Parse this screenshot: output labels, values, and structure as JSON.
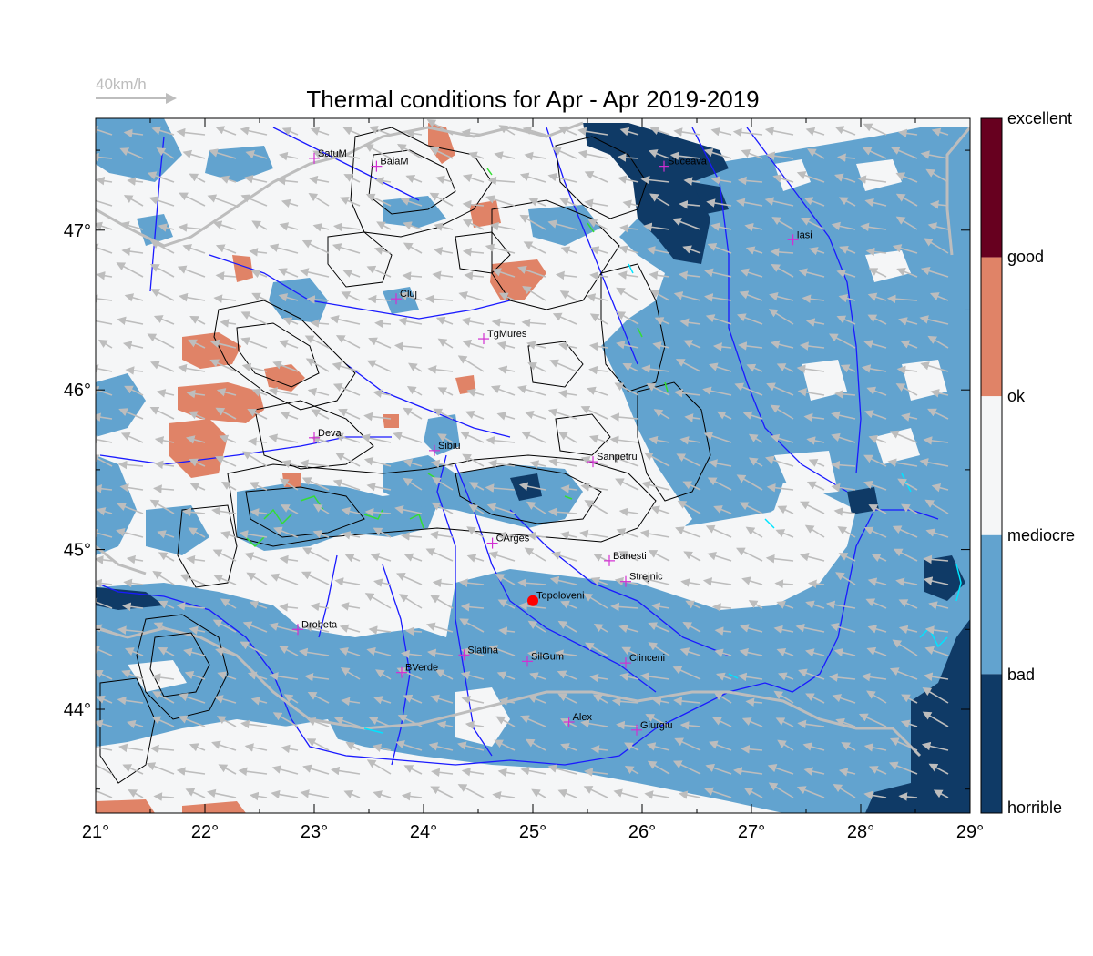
{
  "title": "Thermal conditions for Apr - Apr  2019-2019",
  "wind_scale": {
    "label": "40km/h",
    "color": "#bdbdbd"
  },
  "axes": {
    "x_ticks": [
      "21°",
      "22°",
      "23°",
      "24°",
      "25°",
      "26°",
      "27°",
      "28°",
      "29°"
    ],
    "y_ticks": [
      "47°",
      "46°",
      "45°",
      "44°"
    ],
    "lon_range": [
      21,
      29
    ],
    "lat_range": [
      43.35,
      47.7
    ]
  },
  "colorbar": {
    "classes": [
      {
        "label": "excellent",
        "color": "#67001f"
      },
      {
        "label": "good",
        "color": "#e08367"
      },
      {
        "label": "ok",
        "color": "#f2f2f2"
      },
      {
        "label": "mediocre",
        "color": "#5da0cc"
      },
      {
        "label": "bad",
        "color": "#0f3a66"
      },
      {
        "label": "horrible",
        "color": "#0f3a66"
      }
    ],
    "band_colors": [
      "#67001f",
      "#e08367",
      "#f5f6f7",
      "#62a3cf",
      "#0f3a66"
    ]
  },
  "cities": [
    {
      "name": "SatuM",
      "lon": 23.0,
      "lat": 47.45
    },
    {
      "name": "BaiaM",
      "lon": 23.57,
      "lat": 47.4
    },
    {
      "name": "Suceava",
      "lon": 26.2,
      "lat": 47.4
    },
    {
      "name": "Iasi",
      "lon": 27.38,
      "lat": 46.94
    },
    {
      "name": "Cluj",
      "lon": 23.75,
      "lat": 46.57
    },
    {
      "name": "TgMures",
      "lon": 24.55,
      "lat": 46.32
    },
    {
      "name": "Deva",
      "lon": 23.0,
      "lat": 45.7
    },
    {
      "name": "Sibiu",
      "lon": 24.1,
      "lat": 45.62
    },
    {
      "name": "Sanpetru",
      "lon": 25.55,
      "lat": 45.55
    },
    {
      "name": "CArges",
      "lon": 24.63,
      "lat": 45.04
    },
    {
      "name": "Banesti",
      "lon": 25.7,
      "lat": 44.93
    },
    {
      "name": "Strejnic",
      "lon": 25.85,
      "lat": 44.8
    },
    {
      "name": "Topoloveni",
      "lon": 25.0,
      "lat": 44.68,
      "highlight": true
    },
    {
      "name": "Drobeta",
      "lon": 22.85,
      "lat": 44.5
    },
    {
      "name": "Slatina",
      "lon": 24.37,
      "lat": 44.34
    },
    {
      "name": "SilGum",
      "lon": 24.95,
      "lat": 44.3
    },
    {
      "name": "Clinceni",
      "lon": 25.85,
      "lat": 44.29
    },
    {
      "name": "BVerde",
      "lon": 23.8,
      "lat": 44.23
    },
    {
      "name": "Alex",
      "lon": 25.33,
      "lat": 43.92
    },
    {
      "name": "Giurgiu",
      "lon": 25.95,
      "lat": 43.87
    }
  ],
  "colors": {
    "background": "#f5f6f7",
    "mediocre": "#62a3cf",
    "bad": "#0f3a66",
    "ok_orange": "#e08367",
    "wind_arrow": "#bdbdbd",
    "rivers": "#1a1aff",
    "border": "#bdbdbd",
    "contour": "#000000",
    "city_marker": "#d22fd2",
    "highlight_marker": "#ff0000",
    "green_feature": "#33dd33",
    "cyan_feature": "#00e5ff"
  }
}
